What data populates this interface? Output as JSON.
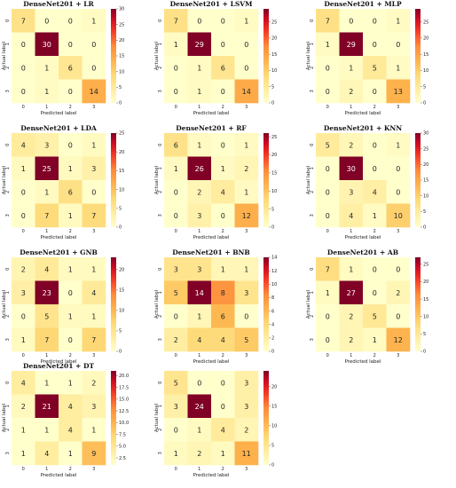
{
  "chart_data": [
    {
      "type": "heatmap",
      "title": "DenseNet201 + LR",
      "xlabel": "Predicted label",
      "ylabel": "Actual label",
      "x_ticks": [
        "0",
        "1",
        "2",
        "3"
      ],
      "y_ticks": [
        "0",
        "1",
        "2",
        "3"
      ],
      "matrix": [
        [
          7,
          0,
          0,
          1
        ],
        [
          0,
          30,
          0,
          0
        ],
        [
          0,
          1,
          6,
          0
        ],
        [
          0,
          1,
          0,
          14
        ]
      ],
      "colorbar": {
        "range": [
          0,
          30
        ],
        "ticks": [
          "30",
          "25",
          "20",
          "15",
          "10",
          "5",
          "0"
        ]
      }
    },
    {
      "type": "heatmap",
      "title": "DenseNet201 + LSVM",
      "xlabel": "Predicted label",
      "ylabel": "Actual label",
      "x_ticks": [
        "0",
        "1",
        "2",
        "3"
      ],
      "y_ticks": [
        "0",
        "1",
        "2",
        "3"
      ],
      "matrix": [
        [
          7,
          0,
          0,
          1
        ],
        [
          1,
          29,
          0,
          0
        ],
        [
          0,
          1,
          6,
          0
        ],
        [
          0,
          1,
          0,
          14
        ]
      ],
      "colorbar": {
        "range": [
          0,
          29
        ],
        "ticks": [
          "25",
          "20",
          "15",
          "10",
          "5",
          "0"
        ]
      }
    },
    {
      "type": "heatmap",
      "title": "DenseNet201 + MLP",
      "xlabel": "Predicted label",
      "ylabel": "Actual label",
      "x_ticks": [
        "0",
        "1",
        "2",
        "3"
      ],
      "y_ticks": [
        "0",
        "1",
        "2",
        "3"
      ],
      "matrix": [
        [
          7,
          0,
          0,
          1
        ],
        [
          1,
          29,
          0,
          0
        ],
        [
          0,
          1,
          5,
          1
        ],
        [
          0,
          2,
          0,
          13
        ]
      ],
      "colorbar": {
        "range": [
          0,
          29
        ],
        "ticks": [
          "25",
          "20",
          "15",
          "10",
          "5",
          "0"
        ]
      }
    },
    {
      "type": "heatmap",
      "title": "DenseNet201 + LDA",
      "xlabel": "Predicted label",
      "ylabel": "Actual label",
      "x_ticks": [
        "0",
        "1",
        "2",
        "3"
      ],
      "y_ticks": [
        "0",
        "1",
        "2",
        "3"
      ],
      "matrix": [
        [
          4,
          3,
          0,
          1
        ],
        [
          1,
          25,
          1,
          3
        ],
        [
          0,
          1,
          6,
          0
        ],
        [
          0,
          7,
          1,
          7
        ]
      ],
      "colorbar": {
        "range": [
          0,
          25
        ],
        "ticks": [
          "25",
          "20",
          "15",
          "10",
          "5",
          "0"
        ]
      }
    },
    {
      "type": "heatmap",
      "title": "DenseNet201 + RF",
      "xlabel": "Predicted label",
      "ylabel": "Actual label",
      "x_ticks": [
        "0",
        "1",
        "2",
        "3"
      ],
      "y_ticks": [
        "0",
        "1",
        "2",
        "3"
      ],
      "matrix": [
        [
          6,
          1,
          0,
          1
        ],
        [
          1,
          26,
          1,
          2
        ],
        [
          0,
          2,
          4,
          1
        ],
        [
          0,
          3,
          0,
          12
        ]
      ],
      "colorbar": {
        "range": [
          0,
          26
        ],
        "ticks": [
          "25",
          "20",
          "15",
          "10",
          "5",
          "0"
        ]
      }
    },
    {
      "type": "heatmap",
      "title": "DenseNet201 + KNN",
      "xlabel": "Predicted label",
      "ylabel": "Actual label",
      "x_ticks": [
        "0",
        "1",
        "2",
        "3"
      ],
      "y_ticks": [
        "0",
        "1",
        "2",
        "3"
      ],
      "matrix": [
        [
          5,
          2,
          0,
          1
        ],
        [
          0,
          30,
          0,
          0
        ],
        [
          0,
          3,
          4,
          0
        ],
        [
          0,
          4,
          1,
          10
        ]
      ],
      "colorbar": {
        "range": [
          0,
          30
        ],
        "ticks": [
          "30",
          "25",
          "20",
          "15",
          "10",
          "5",
          "0"
        ]
      }
    },
    {
      "type": "heatmap",
      "title": "DenseNet201 + GNB",
      "xlabel": "Predicted label",
      "ylabel": "Actual label",
      "x_ticks": [
        "0",
        "1",
        "2",
        "3"
      ],
      "y_ticks": [
        "0",
        "1",
        "2",
        "3"
      ],
      "matrix": [
        [
          2,
          4,
          1,
          1
        ],
        [
          3,
          23,
          0,
          4
        ],
        [
          0,
          5,
          1,
          1
        ],
        [
          1,
          7,
          0,
          7
        ]
      ],
      "colorbar": {
        "range": [
          0,
          23
        ],
        "ticks": [
          "20",
          "15",
          "10",
          "5",
          "0"
        ]
      }
    },
    {
      "type": "heatmap",
      "title": "DenseNet201 + BNB",
      "xlabel": "Predicted label",
      "ylabel": "Actual label",
      "x_ticks": [
        "0",
        "1",
        "2",
        "3"
      ],
      "y_ticks": [
        "0",
        "1",
        "2",
        "3"
      ],
      "matrix": [
        [
          3,
          3,
          1,
          1
        ],
        [
          5,
          14,
          8,
          3
        ],
        [
          0,
          1,
          6,
          0
        ],
        [
          2,
          4,
          4,
          5
        ]
      ],
      "colorbar": {
        "range": [
          0,
          14
        ],
        "ticks": [
          "14",
          "12",
          "10",
          "8",
          "6",
          "4",
          "2",
          "0"
        ]
      }
    },
    {
      "type": "heatmap",
      "title": "DenseNet201 + AB",
      "xlabel": "Predicted label",
      "ylabel": "Actual label",
      "x_ticks": [
        "0",
        "1",
        "2",
        "3"
      ],
      "y_ticks": [
        "0",
        "1",
        "2",
        "3"
      ],
      "matrix": [
        [
          7,
          1,
          0,
          0
        ],
        [
          1,
          27,
          0,
          2
        ],
        [
          0,
          2,
          5,
          0
        ],
        [
          0,
          2,
          1,
          12
        ]
      ],
      "colorbar": {
        "range": [
          0,
          27
        ],
        "ticks": [
          "25",
          "20",
          "15",
          "10",
          "5",
          "0"
        ]
      }
    },
    {
      "type": "heatmap",
      "title": "DenseNet201 + DT",
      "xlabel": "Predicted label",
      "ylabel": "Actual label",
      "x_ticks": [
        "0",
        "1",
        "2",
        "3"
      ],
      "y_ticks": [
        "0",
        "1",
        "2",
        "3"
      ],
      "matrix": [
        [
          4,
          1,
          1,
          2
        ],
        [
          2,
          21,
          4,
          3
        ],
        [
          1,
          1,
          4,
          1
        ],
        [
          1,
          4,
          1,
          9
        ]
      ],
      "colorbar": {
        "range": [
          1,
          21
        ],
        "ticks": [
          "20.0",
          "17.5",
          "15.0",
          "12.5",
          "10.0",
          "7.5",
          "5.0",
          "2.5"
        ]
      }
    },
    {
      "type": "heatmap",
      "title": "",
      "xlabel": "Predicted label",
      "ylabel": "Actual label",
      "x_ticks": [
        "0",
        "1",
        "2",
        "3"
      ],
      "y_ticks": [
        "0",
        "1",
        "2",
        "3"
      ],
      "matrix": [
        [
          5,
          0,
          0,
          3
        ],
        [
          3,
          24,
          0,
          3
        ],
        [
          0,
          1,
          4,
          2
        ],
        [
          1,
          2,
          1,
          11
        ]
      ],
      "colorbar": {
        "range": [
          0,
          24
        ],
        "ticks": [
          "20",
          "15",
          "10",
          "5",
          "0"
        ]
      }
    }
  ]
}
